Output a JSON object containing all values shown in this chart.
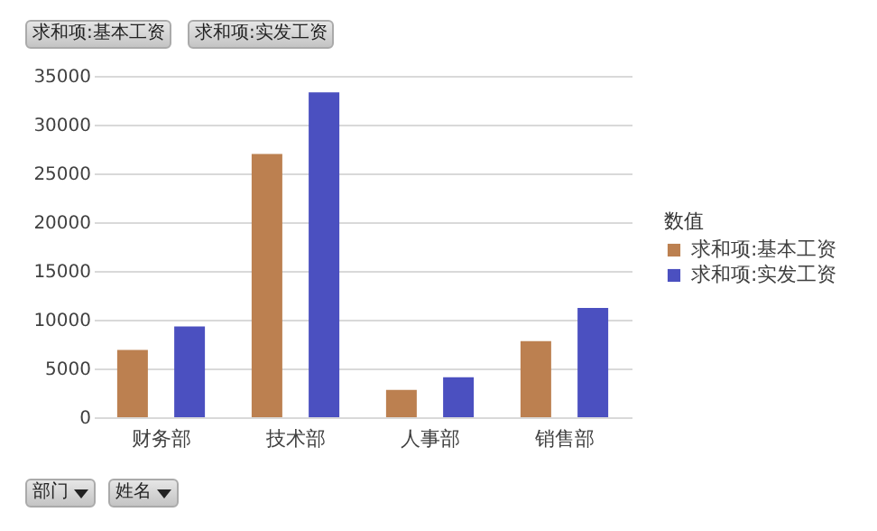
{
  "chart_data": {
    "type": "bar",
    "categories": [
      "财务部",
      "技术部",
      "人事部",
      "销售部"
    ],
    "series": [
      {
        "name": "求和项:基本工资",
        "color": "#bc8050",
        "values": [
          6900,
          27000,
          2800,
          7800
        ]
      },
      {
        "name": "求和项:实发工资",
        "color": "#4b50c0",
        "values": [
          9300,
          33300,
          4100,
          11200
        ]
      }
    ],
    "ylim": [
      0,
      35000
    ],
    "yticks": [
      0,
      5000,
      10000,
      15000,
      20000,
      25000,
      30000,
      35000
    ],
    "grid": "y",
    "legend": "right",
    "legend_title": "数值",
    "annotations": [
      "求和项:基本工资",
      "求和项:实发工资",
      "部门",
      "姓名"
    ]
  }
}
